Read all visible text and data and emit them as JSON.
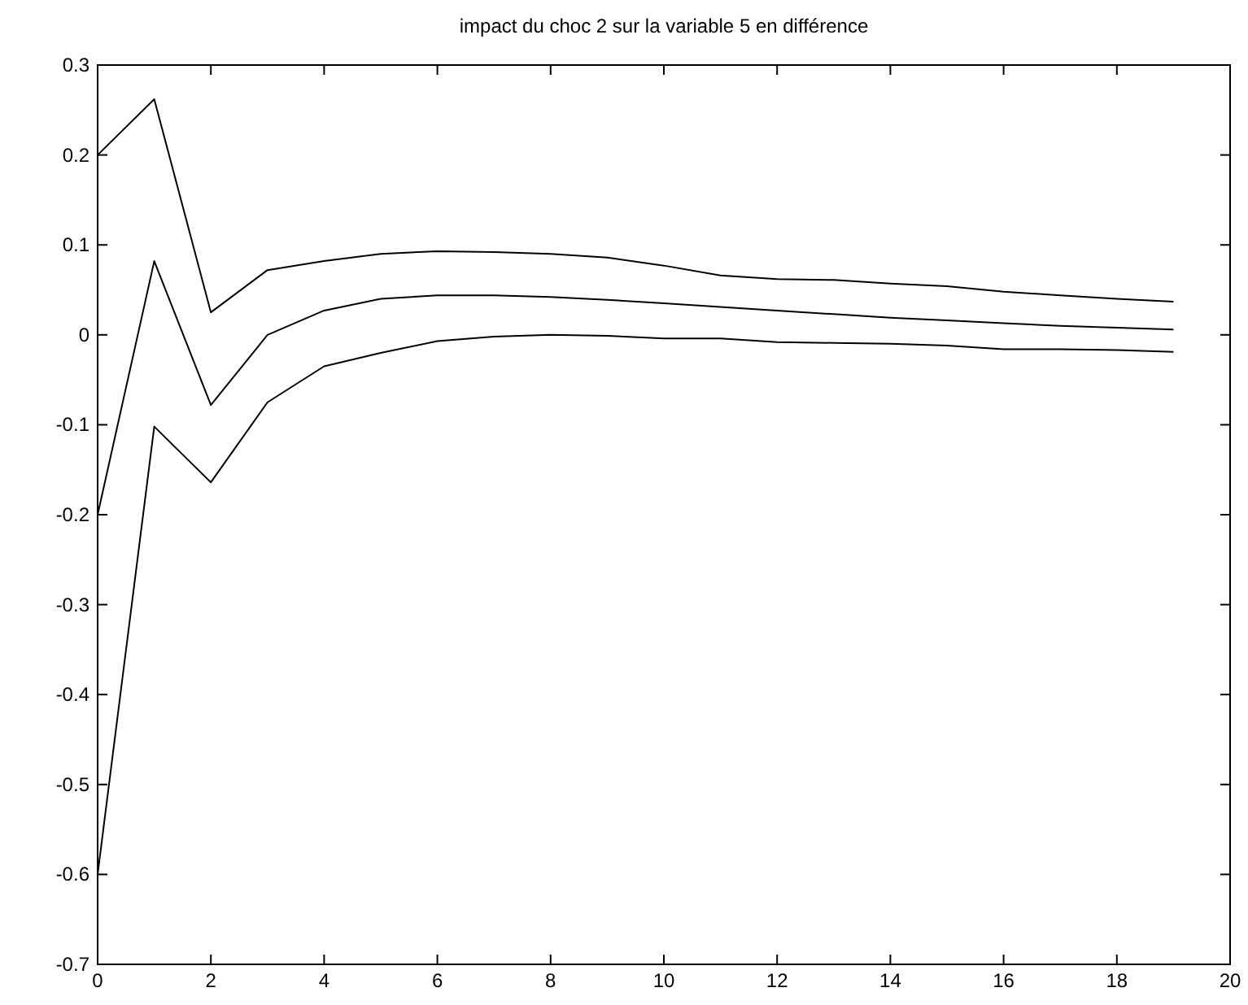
{
  "chart_data": {
    "type": "line",
    "title": "impact du choc 2 sur la variable 5 en différence",
    "x": [
      0,
      1,
      2,
      3,
      4,
      5,
      6,
      7,
      8,
      9,
      10,
      11,
      12,
      13,
      14,
      15,
      16,
      17,
      18,
      19
    ],
    "series": [
      {
        "color": "#000000",
        "values": [
          0.2,
          0.262,
          0.025,
          0.072,
          0.082,
          0.09,
          0.093,
          0.092,
          0.09,
          0.086,
          0.077,
          0.066,
          0.062,
          0.061,
          0.057,
          0.054,
          0.048,
          0.044,
          0.04,
          0.037
        ]
      },
      {
        "color": "#000000",
        "values": [
          -0.2,
          0.082,
          -0.078,
          0.0,
          0.027,
          0.04,
          0.044,
          0.044,
          0.042,
          0.039,
          0.035,
          0.031,
          0.027,
          0.023,
          0.019,
          0.016,
          0.013,
          0.01,
          0.008,
          0.006
        ]
      },
      {
        "color": "#000000",
        "values": [
          -0.6,
          -0.102,
          -0.164,
          -0.075,
          -0.035,
          -0.02,
          -0.007,
          -0.002,
          0.0,
          -0.001,
          -0.004,
          -0.004,
          -0.008,
          -0.009,
          -0.01,
          -0.012,
          -0.016,
          -0.016,
          -0.017,
          -0.019
        ]
      }
    ],
    "xlim": [
      0,
      20
    ],
    "xticks": [
      0,
      2,
      4,
      6,
      8,
      10,
      12,
      14,
      16,
      18,
      20
    ],
    "ylim": [
      -0.7,
      0.3
    ],
    "yticks": [
      -0.7,
      -0.6,
      -0.5,
      -0.4,
      -0.3,
      -0.2,
      -0.1,
      0,
      0.1,
      0.2,
      0.3
    ],
    "grid": false,
    "marker": "none",
    "line_style": "solid"
  }
}
